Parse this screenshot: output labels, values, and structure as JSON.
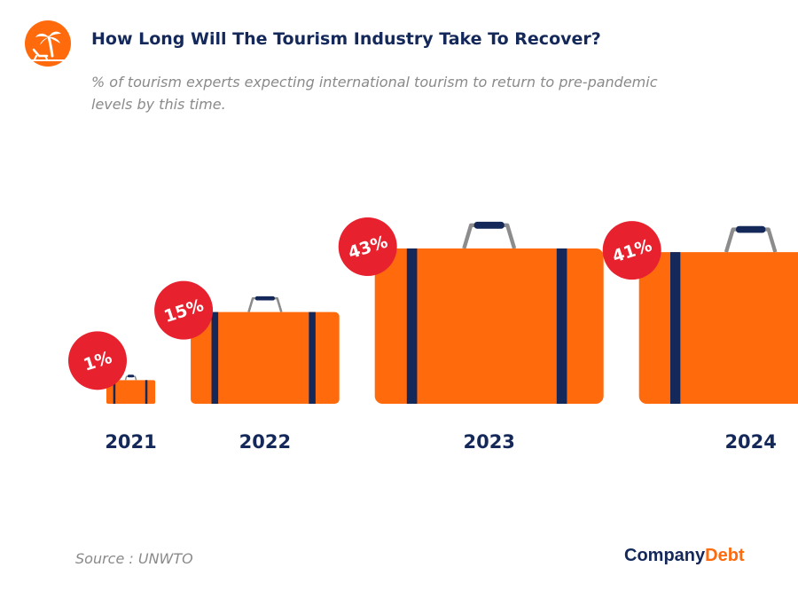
{
  "header": {
    "title": "How Long Will The Tourism Industry Take To Recover?",
    "subtitle": "% of tourism experts expecting international tourism to return to pre-pandemic levels by this time.",
    "logo_icon": "palm-tree-beach-chair-icon"
  },
  "footer": {
    "source": "Source : UNWTO",
    "brand_part1": "Company",
    "brand_part2": "Debt"
  },
  "colors": {
    "suitcase": "#ff6a0d",
    "strap": "#14285a",
    "handle": "#8c8c8c",
    "badge": "#e8212e",
    "year_label": "#14285a"
  },
  "chart_data": {
    "type": "bar",
    "categories": [
      "2021",
      "2022",
      "2023",
      "2024"
    ],
    "values": [
      1,
      15,
      43,
      41
    ],
    "value_labels": [
      "1%",
      "15%",
      "43%",
      "41%"
    ],
    "xlabel": "",
    "ylabel": "",
    "unit": "%",
    "grid": false,
    "legend": "none"
  }
}
